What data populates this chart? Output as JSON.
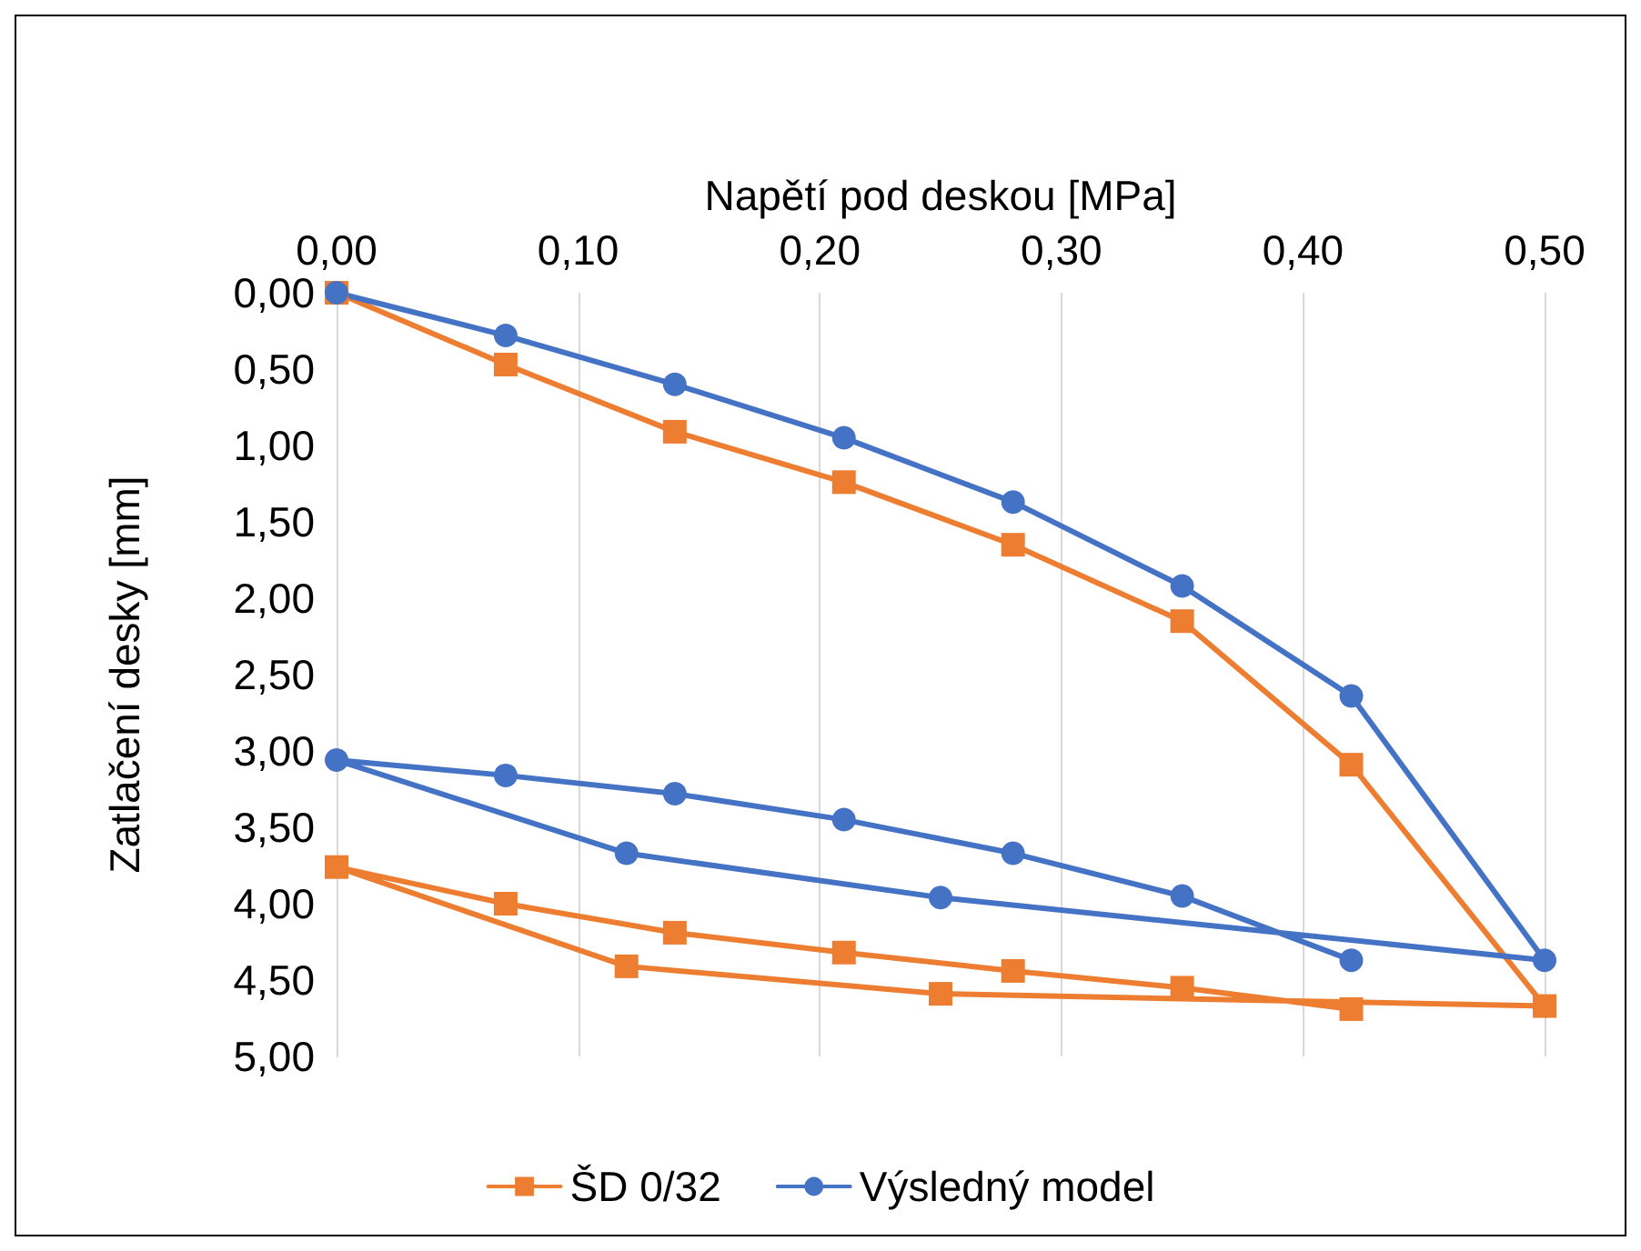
{
  "chart_data": {
    "type": "line",
    "xlabel": "Napětí pod deskou [MPa]",
    "ylabel": "Zatlačení desky [mm]",
    "xlim": [
      0,
      0.5
    ],
    "xticks": [
      {
        "value": 0,
        "label": "0,00"
      },
      {
        "value": 0.1,
        "label": "0,10"
      },
      {
        "value": 0.2,
        "label": "0,20"
      },
      {
        "value": 0.3,
        "label": "0,30"
      },
      {
        "value": 0.4,
        "label": "0,40"
      },
      {
        "value": 0.5,
        "label": "0,50"
      }
    ],
    "ylim": [
      5,
      0
    ],
    "yticks": [
      {
        "value": 0,
        "label": "0,00"
      },
      {
        "value": 0.5,
        "label": "0,50"
      },
      {
        "value": 1,
        "label": "1,00"
      },
      {
        "value": 1.5,
        "label": "1,50"
      },
      {
        "value": 2,
        "label": "2,00"
      },
      {
        "value": 2.5,
        "label": "2,50"
      },
      {
        "value": 3,
        "label": "3,00"
      },
      {
        "value": 3.5,
        "label": "3,50"
      },
      {
        "value": 4,
        "label": "4,00"
      },
      {
        "value": 4.5,
        "label": "4,50"
      },
      {
        "value": 5,
        "label": "5,00"
      }
    ],
    "grid": "x",
    "legend": "bottom",
    "line_style": "solid",
    "series": [
      {
        "name": "ŠD 0/32",
        "color": "#ed7d31",
        "marker": "square",
        "x": [
          0,
          0.07,
          0.14,
          0.21,
          0.28,
          0.35,
          0.42,
          0.5,
          0.25,
          0.12,
          0,
          0.07,
          0.14,
          0.21,
          0.28,
          0.35,
          0.42
        ],
        "values": [
          0,
          0.47,
          0.91,
          1.24,
          1.65,
          2.15,
          3.09,
          4.67,
          4.59,
          4.41,
          3.76,
          4.0,
          4.19,
          4.32,
          4.44,
          4.55,
          4.69
        ]
      },
      {
        "name": "Výsledný model",
        "color": "#4472c4",
        "marker": "circle",
        "x": [
          0,
          0.07,
          0.14,
          0.21,
          0.28,
          0.35,
          0.42,
          0.5,
          0.25,
          0.12,
          0,
          0.07,
          0.14,
          0.21,
          0.28,
          0.35,
          0.42
        ],
        "values": [
          0,
          0.28,
          0.6,
          0.95,
          1.37,
          1.92,
          2.64,
          4.37,
          3.96,
          3.67,
          3.06,
          3.16,
          3.28,
          3.45,
          3.67,
          3.95,
          4.37
        ]
      }
    ]
  }
}
